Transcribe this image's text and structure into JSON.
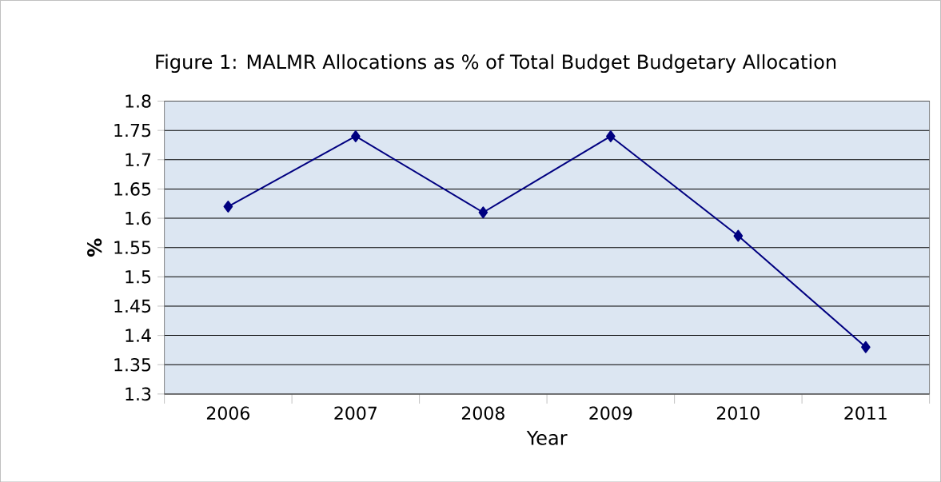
{
  "chart_data": {
    "type": "line",
    "title": "Figure 1: MALMR Allocations as % of Total Budget Budgetary Allocation",
    "xlabel": "Year",
    "ylabel": "%",
    "categories": [
      "2006",
      "2007",
      "2008",
      "2009",
      "2010",
      "2011"
    ],
    "series": [
      {
        "color": "#000080",
        "values": [
          1.62,
          1.74,
          1.61,
          1.74,
          1.57,
          1.38
        ]
      }
    ],
    "ylim": [
      1.3,
      1.8
    ],
    "yticks": [
      1.3,
      1.35,
      1.4,
      1.45,
      1.5,
      1.55,
      1.6,
      1.65,
      1.7,
      1.75,
      1.8
    ],
    "grid": "y",
    "marker": "diamond",
    "line_style": "solid"
  }
}
